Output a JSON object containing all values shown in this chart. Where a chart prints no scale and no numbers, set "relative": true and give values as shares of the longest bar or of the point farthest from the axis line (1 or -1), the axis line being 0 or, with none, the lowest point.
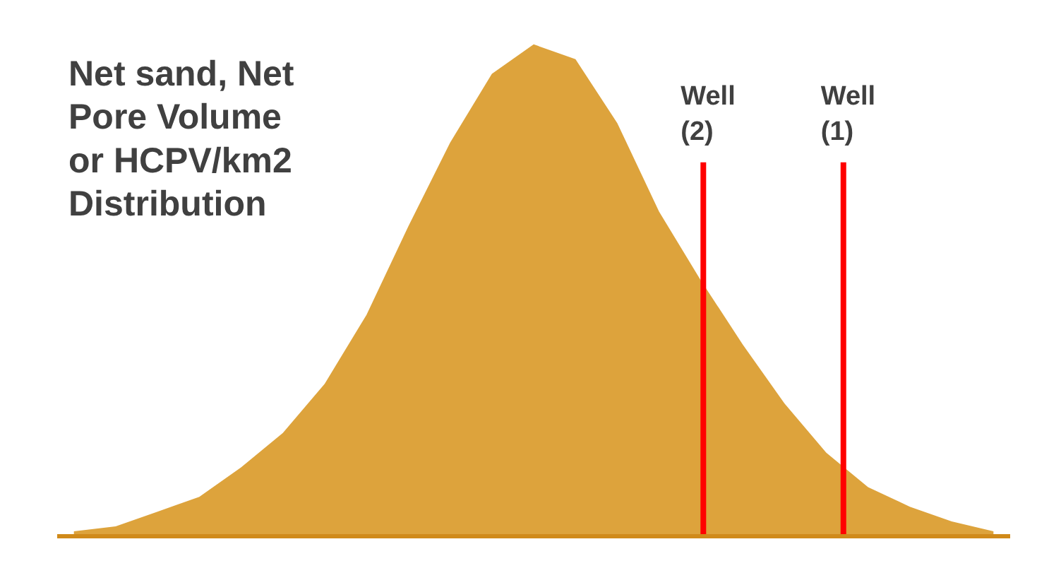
{
  "chart_data": {
    "type": "area",
    "relative": true,
    "categories": [
      null,
      null,
      null,
      null,
      null,
      null,
      null,
      null,
      null,
      null,
      null,
      null,
      null,
      null,
      null,
      null,
      null,
      null,
      null,
      null,
      null,
      null,
      null
    ],
    "series": [
      {
        "color": "#dda33c",
        "values": [
          0.01,
          0.02,
          0.05,
          0.08,
          0.14,
          0.21,
          0.31,
          0.45,
          0.63,
          0.8,
          0.94,
          1,
          0.97,
          0.84,
          0.66,
          0.52,
          0.39,
          0.27,
          0.17,
          0.1,
          0.06,
          0.03,
          0.01
        ]
      }
    ],
    "annotations": [
      "Net sand, Net\nPore Volume\nor HCPV/km2\nDistribution",
      "Well\n(2)",
      "Well\n(1)"
    ]
  }
}
